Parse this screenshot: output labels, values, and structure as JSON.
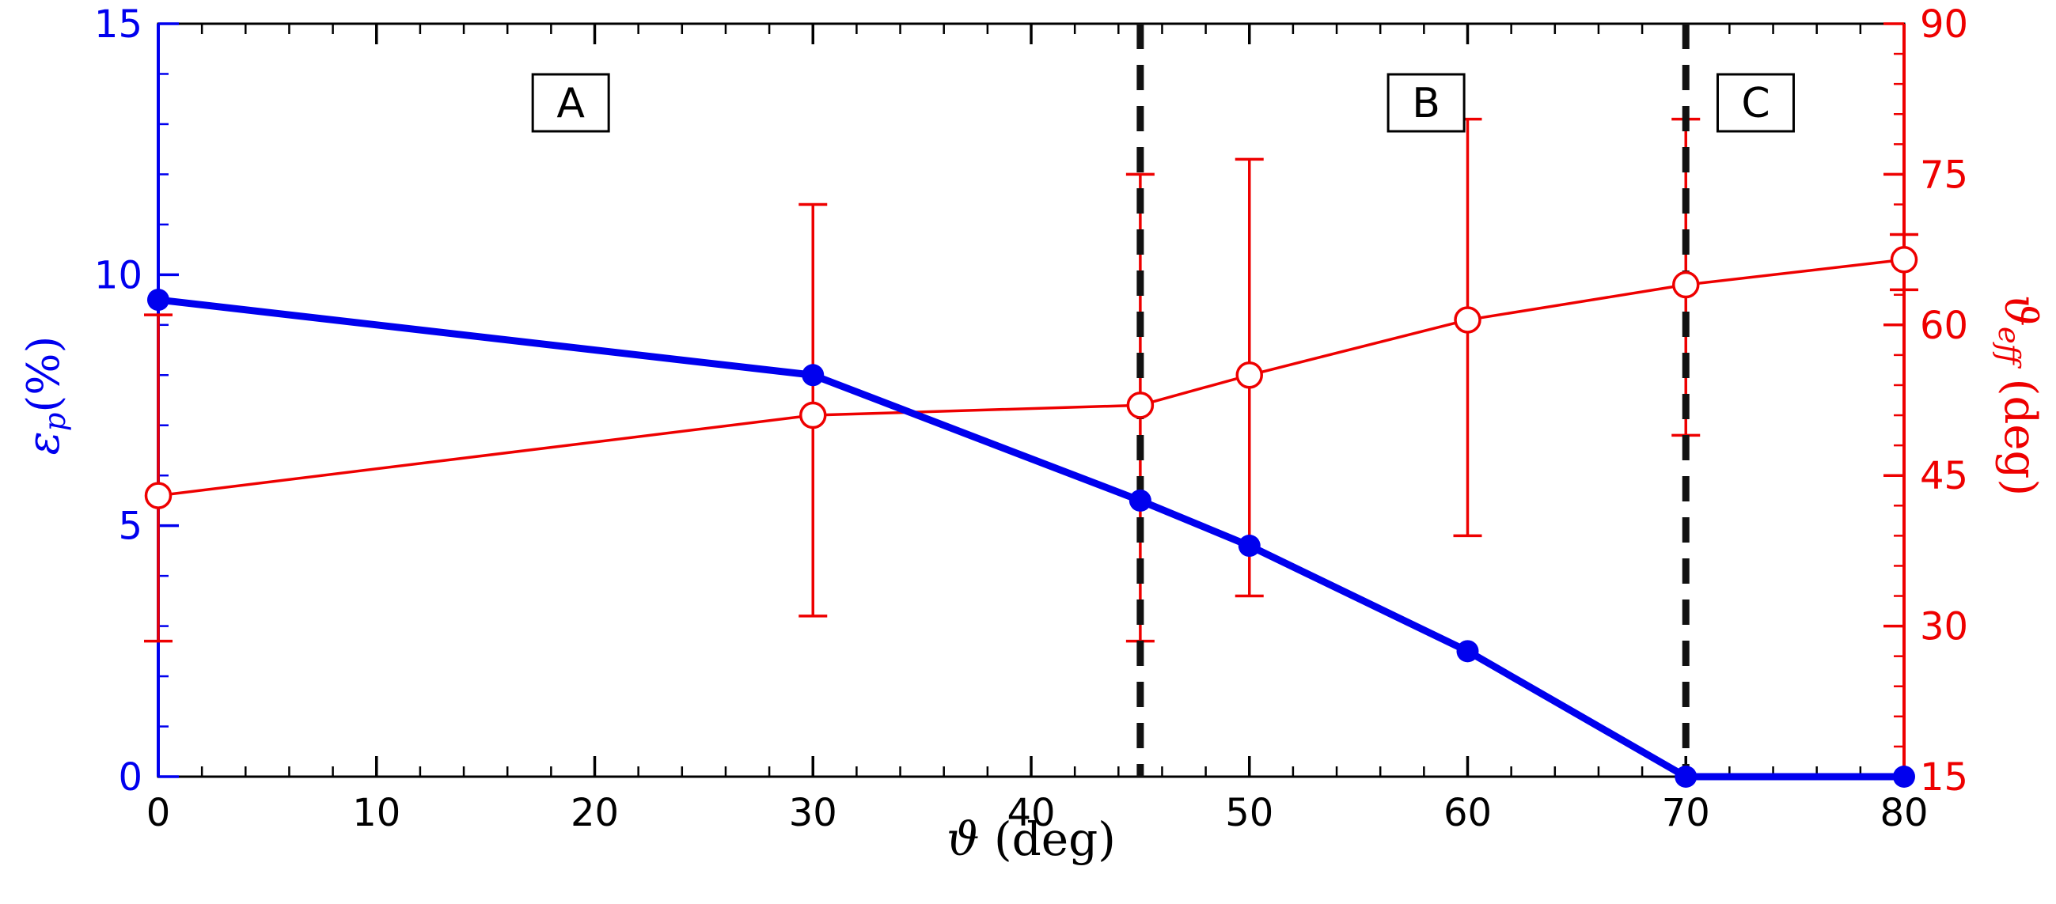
{
  "chart_data": {
    "type": "line",
    "x": [
      0,
      30,
      45,
      50,
      60,
      70,
      80
    ],
    "series": [
      {
        "name": "epsilon_p_percent",
        "axis": "left",
        "color": "#0000ee",
        "marker": "filled-circle",
        "values": [
          9.5,
          8.0,
          5.5,
          4.6,
          2.5,
          0,
          0
        ]
      },
      {
        "name": "theta_eff_deg",
        "axis": "right",
        "color": "#ee0000",
        "marker": "open-circle",
        "values": [
          43,
          51,
          52,
          55,
          60.5,
          64,
          66.5
        ],
        "err_low": [
          28.5,
          31,
          28.5,
          33,
          39,
          49,
          63.5
        ],
        "err_high": [
          61,
          72,
          75,
          76.5,
          80.5,
          80.5,
          69
        ]
      }
    ],
    "xlabel": "ϑ (deg)",
    "ylabel_left": "εp(%)",
    "ylabel_right": "ϑeff (deg)",
    "xlim": [
      0,
      80
    ],
    "ylim_left": [
      0,
      15
    ],
    "ylim_right": [
      15,
      90
    ],
    "xticks": [
      0,
      10,
      20,
      30,
      40,
      50,
      60,
      70,
      80
    ],
    "xtick_labels": [
      "0",
      "10",
      "20",
      "30",
      "40",
      "50",
      "60",
      "70",
      "80"
    ],
    "yticks_left": [
      0,
      5,
      10,
      15
    ],
    "ytick_labels_left": [
      "0",
      "5",
      "10",
      "15"
    ],
    "yticks_right": [
      15,
      30,
      45,
      60,
      75,
      90
    ],
    "ytick_labels_right": [
      "15",
      "30",
      "45",
      "60",
      "75",
      "90"
    ],
    "minor_step_x": 2,
    "minor_step_left": 1,
    "minor_step_right": 3,
    "vlines": [
      45,
      70
    ],
    "regions": [
      {
        "label": "A",
        "x": 18.9
      },
      {
        "label": "B",
        "x": 58.1
      },
      {
        "label": "C",
        "x": 73.2
      }
    ],
    "colors": {
      "left_axis": "#0000ee",
      "right_axis": "#ee0000",
      "frame": "#000000",
      "vline": "#111111"
    },
    "grid": false,
    "legend": "none"
  },
  "labels": {
    "x_main": "ϑ",
    "x_rest": " (deg)",
    "left_main": "ε",
    "left_sub": "p",
    "left_rest": "(%)",
    "right_main": "ϑ",
    "right_sub": "eff",
    "right_rest": " (deg)"
  }
}
